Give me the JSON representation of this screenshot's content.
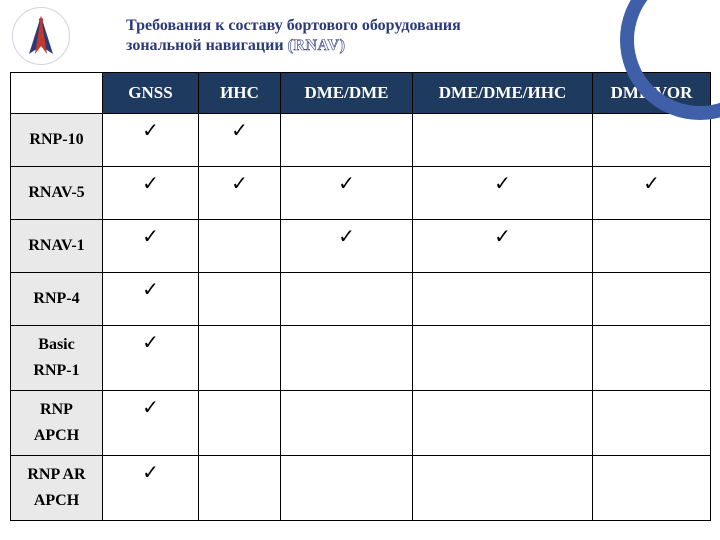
{
  "colors": {
    "title_text": "#2b3a7a",
    "header_bg": "#1f3a5f",
    "rowhead_bg": "#e9e9e9",
    "row_alt_bg": "#ffffff",
    "arc_color": "#3f5fa8",
    "logo_red": "#c0392b",
    "logo_blue": "#2b3a7a",
    "tick_color": "#000000"
  },
  "header": {
    "title_line1": "Требования к составу бортового оборудования",
    "title_line2_a": "зональной навигации ",
    "title_line2_b": "(RNAV)"
  },
  "table": {
    "columns": [
      "GNSS",
      "ИНС",
      "DME/DME",
      "DME/DME/ИНС",
      "DME/VOR"
    ],
    "rows": [
      {
        "label": "RNP-10",
        "cells": [
          true,
          true,
          false,
          false,
          false
        ]
      },
      {
        "label": "RNAV-5",
        "cells": [
          true,
          true,
          true,
          true,
          true
        ]
      },
      {
        "label": "RNAV-1",
        "cells": [
          true,
          false,
          true,
          true,
          false
        ]
      },
      {
        "label": "RNP-4",
        "cells": [
          true,
          false,
          false,
          false,
          false
        ]
      },
      {
        "label": "Basic\nRNP-1",
        "cells": [
          true,
          false,
          false,
          false,
          false
        ]
      },
      {
        "label": "RNP\nAPCH",
        "cells": [
          true,
          false,
          false,
          false,
          false
        ]
      },
      {
        "label": "RNP AR\nAPCH",
        "cells": [
          true,
          false,
          false,
          false,
          false
        ]
      }
    ],
    "tick_glyph": "✓"
  }
}
